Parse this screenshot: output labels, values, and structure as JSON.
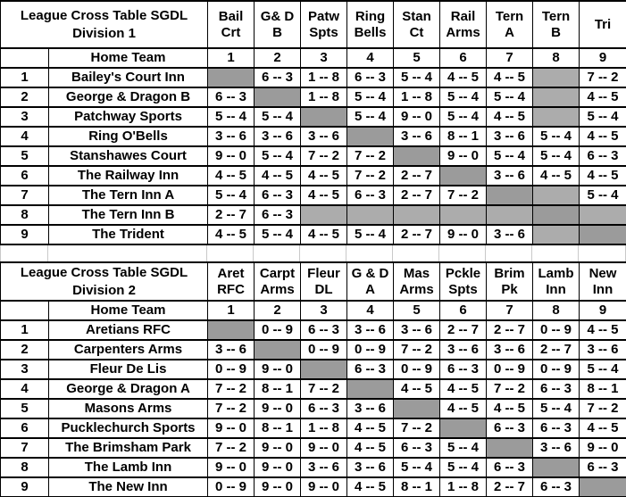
{
  "colors": {
    "diagonal_cell": "#9b9b9b",
    "unplayed_cell": "#acacac",
    "grid_line": "#000000",
    "faint_grid_line": "#c9c9c9",
    "background": "#ffffff"
  },
  "tables": [
    {
      "title": [
        "League Cross Table SGDL",
        "Division 1"
      ],
      "home_team_label": "Home Team",
      "away_headers": [
        [
          "Bail",
          "Crt"
        ],
        [
          "G& D",
          "B"
        ],
        [
          "Patw",
          "Spts"
        ],
        [
          "Ring",
          "Bells"
        ],
        [
          "Stan",
          "Ct"
        ],
        [
          "Rail",
          "Arms"
        ],
        [
          "Tern",
          "A"
        ],
        [
          "Tern",
          "B"
        ],
        [
          "",
          "Tri"
        ]
      ],
      "away_numbers": [
        "1",
        "2",
        "3",
        "4",
        "5",
        "6",
        "7",
        "8",
        "9"
      ],
      "rows": [
        {
          "num": "1",
          "team": "Bailey's Court Inn",
          "scores": [
            null,
            "6 -- 3",
            "1 -- 8",
            "6 -- 3",
            "5 -- 4",
            "4 -- 5",
            "4 -- 5",
            null,
            "7 -- 2"
          ]
        },
        {
          "num": "2",
          "team": "George & Dragon B",
          "scores": [
            "6 -- 3",
            null,
            "1 -- 8",
            "5 -- 4",
            "1 -- 8",
            "5 -- 4",
            "5 -- 4",
            null,
            "4 -- 5"
          ]
        },
        {
          "num": "3",
          "team": "Patchway Sports",
          "scores": [
            "5 -- 4",
            "5 -- 4",
            null,
            "5 -- 4",
            "9 -- 0",
            "5 -- 4",
            "4 -- 5",
            null,
            "5 -- 4"
          ]
        },
        {
          "num": "4",
          "team": "Ring O'Bells",
          "scores": [
            "3 -- 6",
            "3 -- 6",
            "3 -- 6",
            null,
            "3 -- 6",
            "8 -- 1",
            "3 -- 6",
            "5 -- 4",
            "4 -- 5"
          ]
        },
        {
          "num": "5",
          "team": "Stanshawes Court",
          "scores": [
            "9 -- 0",
            "5 -- 4",
            "7 -- 2",
            "7 -- 2",
            null,
            "9 -- 0",
            "5 -- 4",
            "5 -- 4",
            "6 -- 3"
          ]
        },
        {
          "num": "6",
          "team": "The Railway Inn",
          "scores": [
            "4 -- 5",
            "4 -- 5",
            "4 -- 5",
            "7 -- 2",
            "2 -- 7",
            null,
            "3 -- 6",
            "4 -- 5",
            "4 -- 5"
          ]
        },
        {
          "num": "7",
          "team": "The Tern Inn A",
          "scores": [
            "5 -- 4",
            "6 -- 3",
            "4 -- 5",
            "6 -- 3",
            "2 -- 7",
            "7 -- 2",
            null,
            null,
            "5 -- 4"
          ]
        },
        {
          "num": "8",
          "team": "The Tern Inn B",
          "scores": [
            "2 -- 7",
            "6 -- 3",
            null,
            null,
            null,
            null,
            null,
            null,
            null
          ]
        },
        {
          "num": "9",
          "team": "The Trident",
          "scores": [
            "4 -- 5",
            "5 -- 4",
            "4 -- 5",
            "5 -- 4",
            "2 -- 7",
            "9 -- 0",
            "3 -- 6",
            null,
            null
          ]
        }
      ]
    },
    {
      "title": [
        "League Cross Table SGDL",
        "Division 2"
      ],
      "home_team_label": "Home Team",
      "away_headers": [
        [
          "Aret",
          "RFC"
        ],
        [
          "Carpt",
          "Arms"
        ],
        [
          "Fleur",
          "DL"
        ],
        [
          "G & D",
          "A"
        ],
        [
          "Mas",
          "Arms"
        ],
        [
          "Pckle",
          "Spts"
        ],
        [
          "Brim",
          "Pk"
        ],
        [
          "Lamb",
          "Inn"
        ],
        [
          "New",
          "Inn"
        ]
      ],
      "away_numbers": [
        "1",
        "2",
        "3",
        "4",
        "5",
        "6",
        "7",
        "8",
        "9"
      ],
      "rows": [
        {
          "num": "1",
          "team": "Aretians RFC",
          "scores": [
            null,
            "0 -- 9",
            "6 -- 3",
            "3 -- 6",
            "3 -- 6",
            "2 -- 7",
            "2 -- 7",
            "0 -- 9",
            "4 -- 5"
          ]
        },
        {
          "num": "2",
          "team": "Carpenters Arms",
          "scores": [
            "3 -- 6",
            null,
            "0 -- 9",
            "0 -- 9",
            "7 -- 2",
            "3 -- 6",
            "3 -- 6",
            "2 -- 7",
            "3 -- 6"
          ]
        },
        {
          "num": "3",
          "team": "Fleur De Lis",
          "scores": [
            "0 -- 9",
            "9 -- 0",
            null,
            "6 -- 3",
            "0 -- 9",
            "6 -- 3",
            "0 -- 9",
            "0 -- 9",
            "5 -- 4"
          ]
        },
        {
          "num": "4",
          "team": "George & Dragon A",
          "scores": [
            "7 -- 2",
            "8 -- 1",
            "7 -- 2",
            null,
            "4 -- 5",
            "4 -- 5",
            "7 -- 2",
            "6 -- 3",
            "8 -- 1"
          ]
        },
        {
          "num": "5",
          "team": "Masons Arms",
          "scores": [
            "7 -- 2",
            "9 -- 0",
            "6 -- 3",
            "3 -- 6",
            null,
            "4 -- 5",
            "4 -- 5",
            "5 -- 4",
            "7 -- 2"
          ]
        },
        {
          "num": "6",
          "team": "Pucklechurch Sports",
          "scores": [
            "9 -- 0",
            "8 -- 1",
            "1 -- 8",
            "4 -- 5",
            "7 -- 2",
            null,
            "6 -- 3",
            "6 -- 3",
            "4 -- 5"
          ]
        },
        {
          "num": "7",
          "team": "The Brimsham Park",
          "scores": [
            "7 -- 2",
            "9 -- 0",
            "9 -- 0",
            "4 -- 5",
            "6 -- 3",
            "5 -- 4",
            null,
            "3 -- 6",
            "9 -- 0"
          ]
        },
        {
          "num": "8",
          "team": "The Lamb Inn",
          "scores": [
            "9 -- 0",
            "9 -- 0",
            "3 -- 6",
            "3 -- 6",
            "5 -- 4",
            "5 -- 4",
            "6 -- 3",
            null,
            "6 -- 3"
          ]
        },
        {
          "num": "9",
          "team": "The New Inn",
          "scores": [
            "0 -- 9",
            "9 -- 0",
            "9 -- 0",
            "4 -- 5",
            "8 -- 1",
            "1 -- 8",
            "2 -- 7",
            "6 -- 3",
            null
          ]
        }
      ]
    }
  ]
}
